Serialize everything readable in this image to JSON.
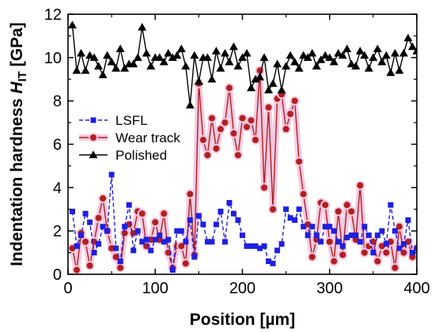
{
  "chart_data": {
    "type": "line",
    "xlabel": "Position  [µm]",
    "ylabel": {
      "prefix": "Indentation hardness ",
      "symbol": "H",
      "subscript": "IT",
      "unit": "  [GPa]"
    },
    "xlim": [
      0,
      400
    ],
    "ylim": [
      0,
      12
    ],
    "xticks": [
      0,
      100,
      200,
      300,
      400
    ],
    "yticks": [
      0,
      2,
      4,
      6,
      8,
      10,
      12
    ],
    "grid": false,
    "legend_position": "middle-left",
    "series": [
      {
        "name": "LSFL",
        "color": "#1f1fe0",
        "line_style": "dashed",
        "marker": "square",
        "x": [
          5,
          10,
          15,
          20,
          25,
          30,
          35,
          40,
          45,
          50,
          55,
          60,
          65,
          70,
          75,
          80,
          85,
          90,
          95,
          100,
          105,
          110,
          115,
          120,
          125,
          130,
          135,
          140,
          145,
          150,
          155,
          160,
          165,
          170,
          175,
          180,
          185,
          190,
          195,
          200,
          205,
          210,
          215,
          220,
          225,
          230,
          235,
          240,
          245,
          250,
          255,
          260,
          265,
          270,
          275,
          280,
          285,
          290,
          295,
          300,
          305,
          310,
          315,
          320,
          325,
          330,
          335,
          340,
          345,
          350,
          355,
          360,
          365,
          370,
          375,
          380,
          385,
          390,
          395,
          400
        ],
        "y": [
          2.9,
          1.3,
          1.8,
          2.8,
          2.4,
          1.0,
          1.4,
          2.2,
          2.0,
          4.6,
          1.2,
          0.6,
          2.2,
          3.2,
          1.1,
          2.0,
          1.5,
          1.6,
          1.1,
          1.6,
          1.8,
          1.5,
          1.6,
          0.2,
          2.0,
          2.0,
          1.5,
          2.5,
          0.8,
          2.7,
          2.3,
          1.5,
          1.5,
          2.3,
          2.9,
          1.5,
          3.3,
          2.8,
          2.5,
          1.8,
          1.3,
          1.3,
          1.3,
          1.2,
          1.3,
          0.6,
          0.5,
          1.1,
          1.4,
          3.0,
          2.6,
          2.5,
          3.0,
          2.2,
          1.8,
          2.2,
          1.8,
          1.5,
          2.2,
          2.2,
          2.0,
          1.5,
          1.3,
          1.7,
          1.8,
          1.8,
          1.5,
          2.2,
          1.8,
          1.0,
          1.8,
          2.0,
          1.4,
          3.2,
          2.0,
          1.2,
          1.4,
          2.5,
          1.0,
          1.2
        ]
      },
      {
        "name": "Wear track",
        "color": "#b02020",
        "line_style": "solid",
        "marker": "circle",
        "x": [
          5,
          10,
          15,
          20,
          25,
          30,
          35,
          40,
          45,
          50,
          55,
          60,
          65,
          70,
          75,
          80,
          85,
          90,
          95,
          100,
          105,
          110,
          115,
          120,
          125,
          130,
          135,
          140,
          145,
          150,
          155,
          160,
          165,
          170,
          175,
          180,
          185,
          190,
          195,
          200,
          205,
          210,
          215,
          220,
          225,
          230,
          235,
          240,
          245,
          250,
          255,
          260,
          265,
          270,
          275,
          280,
          285,
          290,
          295,
          300,
          305,
          310,
          315,
          320,
          325,
          330,
          335,
          340,
          345,
          350,
          355,
          360,
          365,
          370,
          375,
          380,
          385,
          390,
          395,
          400
        ],
        "y": [
          1.2,
          0.2,
          1.9,
          1.5,
          0.4,
          1.5,
          2.6,
          3.5,
          2.0,
          1.2,
          0.8,
          0.3,
          1.9,
          2.3,
          1.9,
          2.9,
          2.8,
          1.3,
          1.6,
          2.4,
          1.6,
          2.8,
          1.0,
          0.3,
          1.3,
          1.3,
          0.5,
          3.7,
          0.9,
          8.8,
          6.2,
          5.5,
          7.2,
          5.8,
          6.7,
          7.0,
          8.6,
          6.5,
          5.5,
          7.2,
          6.8,
          7.1,
          6.2,
          9.4,
          4.0,
          7.7,
          3.0,
          8.1,
          8.3,
          6.7,
          7.4,
          8.0,
          5.2,
          3.7,
          2.3,
          0.8,
          1.6,
          3.3,
          3.2,
          1.5,
          0.6,
          2.9,
          0.9,
          3.2,
          2.9,
          1.6,
          4.1,
          1.0,
          1.3,
          1.5,
          0.6,
          1.3,
          1.0,
          1.5,
          0.3,
          2.2,
          1.0,
          1.5,
          0.8,
          1.2
        ]
      },
      {
        "name": "Polished",
        "color": "#000000",
        "line_style": "solid",
        "marker": "triangle",
        "x": [
          5,
          10,
          15,
          20,
          25,
          30,
          35,
          40,
          45,
          50,
          55,
          60,
          65,
          70,
          75,
          80,
          85,
          90,
          95,
          100,
          105,
          110,
          115,
          120,
          125,
          130,
          135,
          140,
          145,
          150,
          155,
          160,
          165,
          170,
          175,
          180,
          185,
          190,
          195,
          200,
          205,
          210,
          215,
          220,
          225,
          230,
          235,
          240,
          245,
          250,
          255,
          260,
          265,
          270,
          275,
          280,
          285,
          290,
          295,
          300,
          305,
          310,
          315,
          320,
          325,
          330,
          335,
          340,
          345,
          350,
          355,
          360,
          365,
          370,
          375,
          380,
          385,
          390,
          395,
          400
        ],
        "y": [
          11.5,
          9.4,
          10.2,
          9.4,
          10.1,
          10.0,
          9.6,
          9.2,
          10.1,
          9.8,
          9.5,
          10.4,
          9.5,
          9.7,
          9.7,
          10.0,
          11.4,
          10.2,
          9.6,
          10.0,
          10.0,
          9.8,
          10.2,
          10.0,
          10.1,
          10.4,
          9.6,
          7.8,
          10.1,
          8.9,
          10.0,
          10.0,
          9.0,
          10.3,
          9.5,
          10.2,
          9.8,
          10.5,
          9.6,
          10.0,
          10.2,
          8.6,
          9.0,
          9.1,
          10.0,
          8.5,
          8.8,
          9.7,
          8.5,
          9.6,
          10.1,
          9.8,
          9.5,
          10.1,
          10.0,
          10.2,
          9.6,
          9.9,
          10.1,
          10.0,
          9.8,
          10.2,
          10.1,
          10.4,
          9.7,
          9.6,
          10.3,
          10.1,
          9.5,
          10.0,
          10.4,
          9.8,
          10.1,
          9.3,
          10.2,
          9.4,
          10.2,
          10.9,
          10.5,
          10.3
        ]
      }
    ]
  }
}
